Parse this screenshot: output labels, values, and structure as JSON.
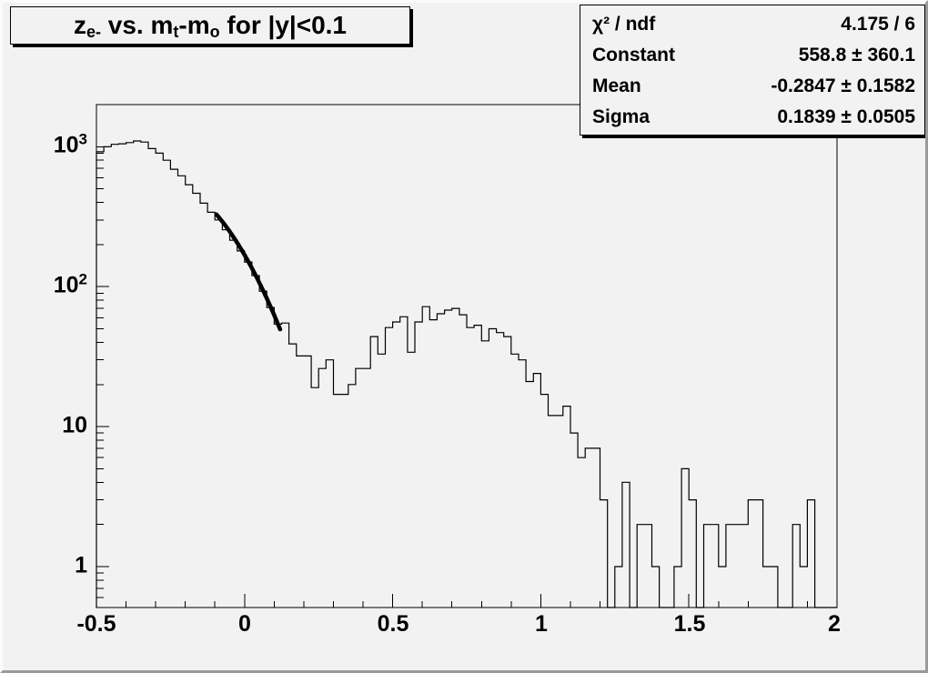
{
  "canvas": {
    "bg_color": "#f2f2f2",
    "line_color": "#000000"
  },
  "title": {
    "text": "z_e- vs. m_t-m_o for |y|<0.1",
    "parts": [
      {
        "text": "z"
      },
      {
        "text": "e-"
      },
      {
        "text": " vs. m"
      },
      {
        "text": "t"
      },
      {
        "text": "-m"
      },
      {
        "text": "o"
      },
      {
        "text": " for |y|<0.1"
      }
    ]
  },
  "stats": {
    "rows": [
      {
        "label": "χ² / ndf",
        "value": "4.175 / 6"
      },
      {
        "label": "Constant",
        "value": "558.8 ± 360.1"
      },
      {
        "label": "Mean",
        "value": "-0.2847 ± 0.1582"
      },
      {
        "label": "Sigma",
        "value": "0.1839 ± 0.0505"
      }
    ]
  },
  "axes": {
    "x": {
      "labels": [
        {
          "v": -0.5,
          "text": "-0.5"
        },
        {
          "v": 0,
          "text": "0"
        },
        {
          "v": 0.5,
          "text": "0.5"
        },
        {
          "v": 1,
          "text": "1"
        },
        {
          "v": 1.5,
          "text": "1.5"
        },
        {
          "v": 2,
          "text": "2"
        }
      ],
      "minor_step": 0.1
    },
    "y": {
      "scale": "log",
      "labels": [
        {
          "v": 1,
          "b": "1",
          "e": ""
        },
        {
          "v": 10,
          "b": "10",
          "e": ""
        },
        {
          "v": 100,
          "b": "10",
          "e": "2"
        },
        {
          "v": 1000,
          "b": "10",
          "e": "3"
        }
      ]
    }
  },
  "chart_data": {
    "type": "bar",
    "subtype": "step-histogram",
    "title": "z_e- vs. m_t-m_o for |y|<0.1",
    "xlabel": "",
    "ylabel": "",
    "xlim": [
      -0.5,
      2
    ],
    "ylim": [
      0.51,
      2000
    ],
    "ylog": true,
    "grid": false,
    "bin_start": -0.5,
    "bin_width": 0.025,
    "values": [
      920,
      1000,
      1040,
      1050,
      1070,
      1100,
      1080,
      970,
      900,
      800,
      690,
      620,
      535,
      465,
      395,
      340,
      300,
      255,
      215,
      180,
      150,
      120,
      93,
      71,
      54,
      55,
      39,
      32,
      32,
      19,
      26,
      30,
      17,
      17,
      20,
      26,
      26,
      44,
      33,
      51,
      56,
      61,
      34,
      56,
      72,
      58,
      64,
      68,
      70,
      63,
      51,
      53,
      41,
      50,
      47,
      44,
      33,
      30,
      21,
      24,
      17,
      12,
      12,
      14,
      9,
      6,
      7,
      7,
      3,
      0,
      1,
      4,
      0,
      2,
      2,
      1,
      0,
      0,
      1,
      5,
      3,
      0,
      2,
      2,
      1,
      2,
      2,
      2,
      3,
      3,
      1,
      1,
      0,
      0,
      2,
      1,
      3,
      0,
      0,
      0
    ],
    "fit": {
      "type": "gaussian",
      "constant": 558.8,
      "mean": -0.2847,
      "sigma": 0.1839,
      "chi2": 4.175,
      "ndf": 6,
      "draw_range": [
        -0.095,
        0.12
      ]
    }
  }
}
